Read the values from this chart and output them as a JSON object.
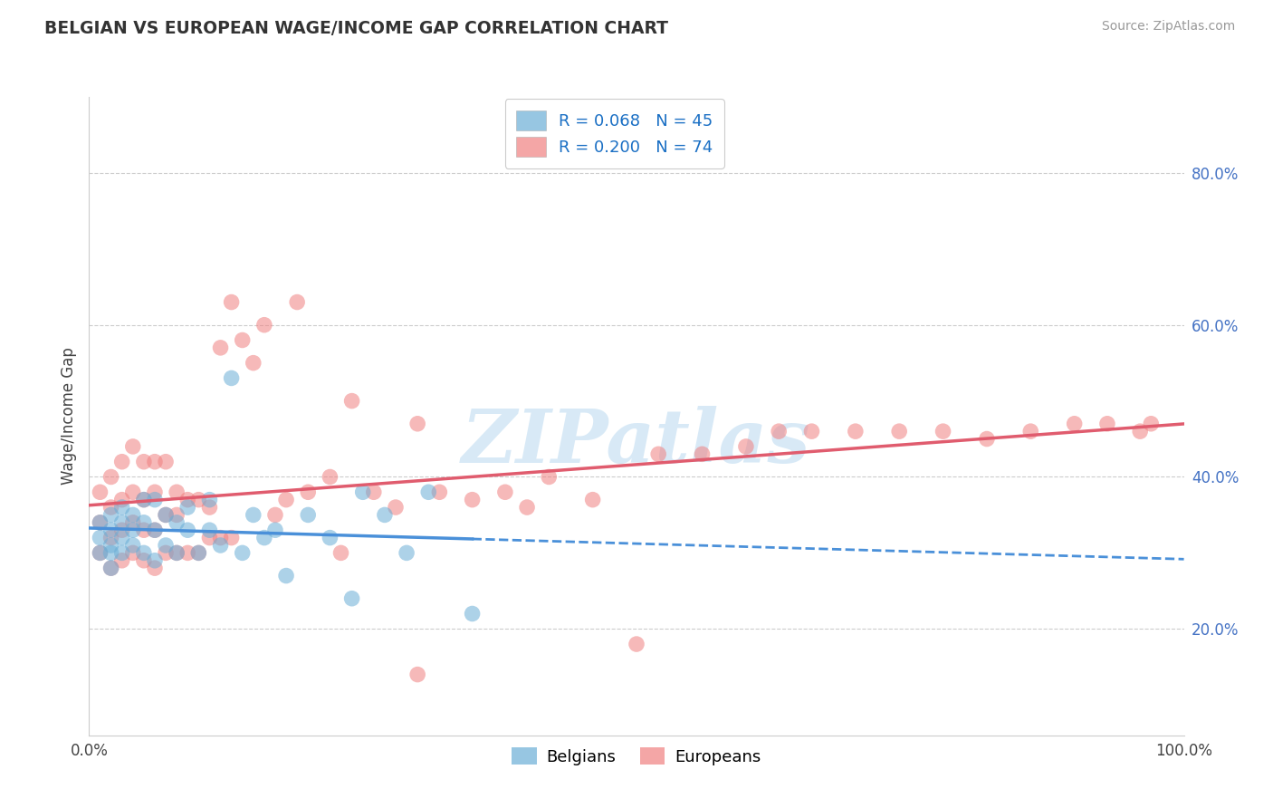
{
  "title": "BELGIAN VS EUROPEAN WAGE/INCOME GAP CORRELATION CHART",
  "source": "Source: ZipAtlas.com",
  "ylabel": "Wage/Income Gap",
  "xlim": [
    0,
    1
  ],
  "ylim": [
    0.06,
    0.9
  ],
  "yticks": [
    0.2,
    0.4,
    0.6,
    0.8
  ],
  "yticklabels": [
    "20.0%",
    "40.0%",
    "60.0%",
    "80.0%"
  ],
  "belgian_color": "#6baed6",
  "european_color": "#f08080",
  "belgian_line_color": "#4a90d9",
  "european_line_color": "#e05c6e",
  "legend_R_label1": "R = 0.068   N = 45",
  "legend_R_label2": "R = 0.200   N = 74",
  "legend_label1": "Belgians",
  "legend_label2": "Europeans",
  "watermark": "ZIPatlas",
  "background_color": "#ffffff",
  "grid_color": "#cccccc",
  "belgians_x": [
    0.01,
    0.01,
    0.01,
    0.02,
    0.02,
    0.02,
    0.02,
    0.02,
    0.03,
    0.03,
    0.03,
    0.03,
    0.04,
    0.04,
    0.04,
    0.05,
    0.05,
    0.05,
    0.06,
    0.06,
    0.06,
    0.07,
    0.07,
    0.08,
    0.08,
    0.09,
    0.09,
    0.1,
    0.11,
    0.11,
    0.12,
    0.13,
    0.14,
    0.15,
    0.16,
    0.17,
    0.18,
    0.2,
    0.22,
    0.24,
    0.25,
    0.27,
    0.29,
    0.31,
    0.35
  ],
  "belgians_y": [
    0.32,
    0.3,
    0.34,
    0.33,
    0.31,
    0.35,
    0.28,
    0.3,
    0.32,
    0.34,
    0.3,
    0.36,
    0.33,
    0.31,
    0.35,
    0.3,
    0.34,
    0.37,
    0.29,
    0.33,
    0.37,
    0.31,
    0.35,
    0.3,
    0.34,
    0.33,
    0.36,
    0.3,
    0.33,
    0.37,
    0.31,
    0.53,
    0.3,
    0.35,
    0.32,
    0.33,
    0.27,
    0.35,
    0.32,
    0.24,
    0.38,
    0.35,
    0.3,
    0.38,
    0.22
  ],
  "europeans_x": [
    0.01,
    0.01,
    0.01,
    0.02,
    0.02,
    0.02,
    0.02,
    0.03,
    0.03,
    0.03,
    0.03,
    0.04,
    0.04,
    0.04,
    0.04,
    0.05,
    0.05,
    0.05,
    0.05,
    0.06,
    0.06,
    0.06,
    0.06,
    0.07,
    0.07,
    0.07,
    0.08,
    0.08,
    0.08,
    0.09,
    0.09,
    0.1,
    0.1,
    0.11,
    0.11,
    0.12,
    0.12,
    0.13,
    0.13,
    0.14,
    0.15,
    0.16,
    0.17,
    0.18,
    0.19,
    0.2,
    0.22,
    0.24,
    0.26,
    0.28,
    0.3,
    0.32,
    0.35,
    0.38,
    0.4,
    0.42,
    0.46,
    0.5,
    0.52,
    0.56,
    0.6,
    0.63,
    0.66,
    0.7,
    0.74,
    0.78,
    0.82,
    0.86,
    0.9,
    0.93,
    0.96,
    0.97,
    0.23,
    0.3
  ],
  "europeans_y": [
    0.3,
    0.34,
    0.38,
    0.28,
    0.32,
    0.36,
    0.4,
    0.29,
    0.33,
    0.37,
    0.42,
    0.3,
    0.34,
    0.38,
    0.44,
    0.29,
    0.33,
    0.37,
    0.42,
    0.28,
    0.33,
    0.38,
    0.42,
    0.3,
    0.35,
    0.42,
    0.3,
    0.35,
    0.38,
    0.3,
    0.37,
    0.3,
    0.37,
    0.32,
    0.36,
    0.32,
    0.57,
    0.32,
    0.63,
    0.58,
    0.55,
    0.6,
    0.35,
    0.37,
    0.63,
    0.38,
    0.4,
    0.5,
    0.38,
    0.36,
    0.47,
    0.38,
    0.37,
    0.38,
    0.36,
    0.4,
    0.37,
    0.18,
    0.43,
    0.43,
    0.44,
    0.46,
    0.46,
    0.46,
    0.46,
    0.46,
    0.45,
    0.46,
    0.47,
    0.47,
    0.46,
    0.47,
    0.3,
    0.14
  ]
}
